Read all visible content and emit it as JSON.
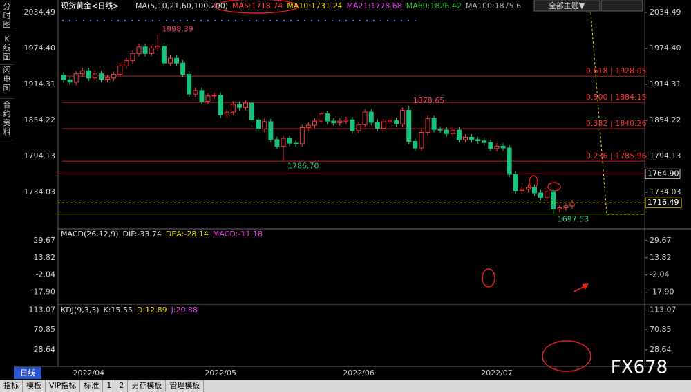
{
  "chart_data": [
    {
      "type": "candlestick",
      "title": "现货黄金<日线>",
      "legend": [
        {
          "text": "MA(5,10,21,60,100,200)",
          "color": "#dddddd"
        },
        {
          "text": "MA5:1718.74",
          "color": "#ff4040"
        },
        {
          "text": "MA10:1731.24",
          "color": "#e8d800"
        },
        {
          "text": "MA21:1778.68",
          "color": "#e040e0"
        },
        {
          "text": "MA60:1826.42",
          "color": "#30c030"
        },
        {
          "text": "MA100:1875.6",
          "color": "#aaaaaa"
        }
      ],
      "categories": [
        null,
        null,
        null,
        null,
        "2022/04",
        null,
        null,
        null,
        null,
        null,
        null,
        null,
        null,
        null,
        null,
        null,
        null,
        null,
        null,
        null,
        null,
        null,
        null,
        null,
        null,
        "2022/05",
        null,
        null,
        null,
        null,
        null,
        null,
        null,
        null,
        null,
        null,
        null,
        null,
        null,
        null,
        null,
        null,
        null,
        null,
        null,
        null,
        null,
        "2022/06",
        null,
        null,
        null,
        null,
        null,
        null,
        null,
        null,
        null,
        null,
        null,
        null,
        null,
        null,
        null,
        null,
        null,
        null,
        null,
        null,
        null,
        "2022/07",
        null,
        null,
        null,
        null,
        null,
        null,
        null,
        null,
        null,
        null,
        null,
        null
      ],
      "open": [
        1930,
        1922,
        1918,
        1932,
        1937,
        1925,
        1932,
        1923,
        1925,
        1931,
        1945,
        1954,
        1966,
        1977,
        1966,
        1975,
        1978,
        1950,
        1958,
        1950,
        1931,
        1898,
        1904,
        1886,
        1895,
        1896,
        1863,
        1868,
        1881,
        1876,
        1883,
        1855,
        1840,
        1852,
        1822,
        1811,
        1824,
        1816,
        1815,
        1842,
        1846,
        1853,
        1865,
        1853,
        1850,
        1853,
        1855,
        1837,
        1847,
        1868,
        1851,
        1841,
        1852,
        1854,
        1848,
        1871,
        1819,
        1808,
        1834,
        1857,
        1839,
        1838,
        1832,
        1838,
        1822,
        1826,
        1822,
        1820,
        1817,
        1807,
        1811,
        1808,
        1764,
        1737,
        1739,
        1742,
        1733,
        1725,
        1735,
        1706,
        1708,
        1711
      ],
      "high": [
        1935,
        1927,
        1937,
        1942,
        1942,
        1937,
        1937,
        1930,
        1936,
        1950,
        1959,
        1971,
        1982,
        1982,
        1980,
        1998.39,
        1983,
        1963,
        1963,
        1955,
        1936,
        1909,
        1909,
        1900,
        1901,
        1901,
        1873,
        1886,
        1886,
        1888,
        1888,
        1860,
        1857,
        1857,
        1827,
        1829,
        1829,
        1821,
        1847,
        1851,
        1858,
        1870,
        1870,
        1858,
        1858,
        1860,
        1860,
        1852,
        1873,
        1873,
        1856,
        1857,
        1859,
        1859,
        1876,
        1878.65,
        1824,
        1839,
        1862,
        1862,
        1844,
        1843,
        1843,
        1843,
        1831,
        1831,
        1827,
        1825,
        1822,
        1816,
        1816,
        1813,
        1769,
        1744,
        1747,
        1747,
        1738,
        1740,
        1740,
        1713,
        1716,
        1721
      ],
      "low": [
        1917,
        1913,
        1913,
        1927,
        1920,
        1920,
        1918,
        1918,
        1920,
        1926,
        1940,
        1949,
        1961,
        1961,
        1961,
        1970,
        1945,
        1945,
        1945,
        1926,
        1893,
        1893,
        1881,
        1881,
        1890,
        1858,
        1858,
        1863,
        1871,
        1871,
        1850,
        1835,
        1835,
        1817,
        1806,
        1786.7,
        1811,
        1810,
        1810,
        1837,
        1841,
        1848,
        1848,
        1845,
        1845,
        1848,
        1832,
        1832,
        1842,
        1846,
        1836,
        1836,
        1847,
        1843,
        1843,
        1814,
        1803,
        1803,
        1829,
        1834,
        1833,
        1827,
        1827,
        1817,
        1817,
        1817,
        1815,
        1812,
        1802,
        1802,
        1803,
        1759,
        1732,
        1732,
        1734,
        1728,
        1720,
        1720,
        1697.53,
        1701,
        1703,
        1706
      ],
      "close": [
        1922,
        1918,
        1932,
        1937,
        1925,
        1932,
        1923,
        1925,
        1931,
        1945,
        1954,
        1966,
        1977,
        1966,
        1975,
        1978,
        1950,
        1958,
        1950,
        1931,
        1898,
        1904,
        1886,
        1895,
        1896,
        1863,
        1868,
        1881,
        1876,
        1883,
        1855,
        1840,
        1852,
        1822,
        1811,
        1824,
        1816,
        1815,
        1842,
        1846,
        1853,
        1865,
        1853,
        1850,
        1853,
        1855,
        1837,
        1847,
        1868,
        1851,
        1841,
        1852,
        1854,
        1848,
        1871,
        1819,
        1808,
        1834,
        1857,
        1839,
        1838,
        1832,
        1838,
        1822,
        1826,
        1822,
        1820,
        1817,
        1807,
        1811,
        1808,
        1764,
        1737,
        1739,
        1742,
        1733,
        1725,
        1735,
        1706,
        1708,
        1711,
        1716.49
      ],
      "up_color": "#ff3a3a",
      "down_color": "#19c27a",
      "ylim": [
        1674,
        2050.7
      ],
      "yticks": [
        2034.49,
        {
          "value": 1974.4,
          "label": "1974.40"
        },
        1914.31,
        1854.22,
        1794.13,
        1734.03
      ],
      "extremes": [
        {
          "value": 1998.39,
          "label": "1998.39"
        },
        {
          "value": 1786.7,
          "label": "1786.70"
        },
        {
          "value": 1878.65,
          "label": "1878.65"
        },
        {
          "value": 1697.53,
          "label": "1697.53"
        }
      ],
      "fib_levels": [
        {
          "value": 1928.05,
          "label": "0.618 | 1928.05"
        },
        {
          "value": 1884.15,
          "label": "0.500 | 1884.15"
        },
        {
          "value": 1840.26,
          "label": "0.382 | 1840.26"
        },
        {
          "value": 1785.96,
          "label": "0.236 | 1785.96"
        }
      ],
      "price_lines": [
        {
          "value": 1764.9,
          "label": "1764.90",
          "color": "#e03030"
        },
        {
          "value": 1697.53,
          "color": "#c8c800"
        }
      ]
    },
    {
      "type": "indicator",
      "legend": [
        {
          "text": "MACD(26,12,9)",
          "color": "#dddddd"
        },
        {
          "text": "DIF:-33.74",
          "color": "#dddddd"
        },
        {
          "text": "DEA:-28.14",
          "color": "#e8d800"
        },
        {
          "text": "MACD:-11.18",
          "color": "#e040e0"
        }
      ],
      "ylim": [
        -27.6,
        37.8
      ],
      "yticks": [
        29.67,
        13.82,
        -2.04,
        {
          "value": -17.9,
          "label": "-17.90"
        }
      ]
    },
    {
      "type": "indicator",
      "legend": [
        {
          "text": "KDJ(9,3,3)",
          "color": "#dddddd"
        },
        {
          "text": "K:15.55",
          "color": "#dddddd"
        },
        {
          "text": "D:12.89",
          "color": "#e8d800"
        },
        {
          "text": "J:20.88",
          "color": "#e040e0"
        }
      ],
      "ylim": [
        -4,
        124
      ],
      "yticks": [
        113.07,
        70.85,
        28.64
      ]
    }
  ],
  "ui": {
    "sidebar": [
      "分时图",
      "K线图",
      "闪电图",
      "合约资料"
    ],
    "period": "日线",
    "tabs": [
      "指标",
      "模板",
      "VIP指标",
      "标准",
      "1",
      "2",
      "另存模板",
      "管理模板"
    ],
    "theme_button": "全部主题▼",
    "watermark": "FX678"
  }
}
